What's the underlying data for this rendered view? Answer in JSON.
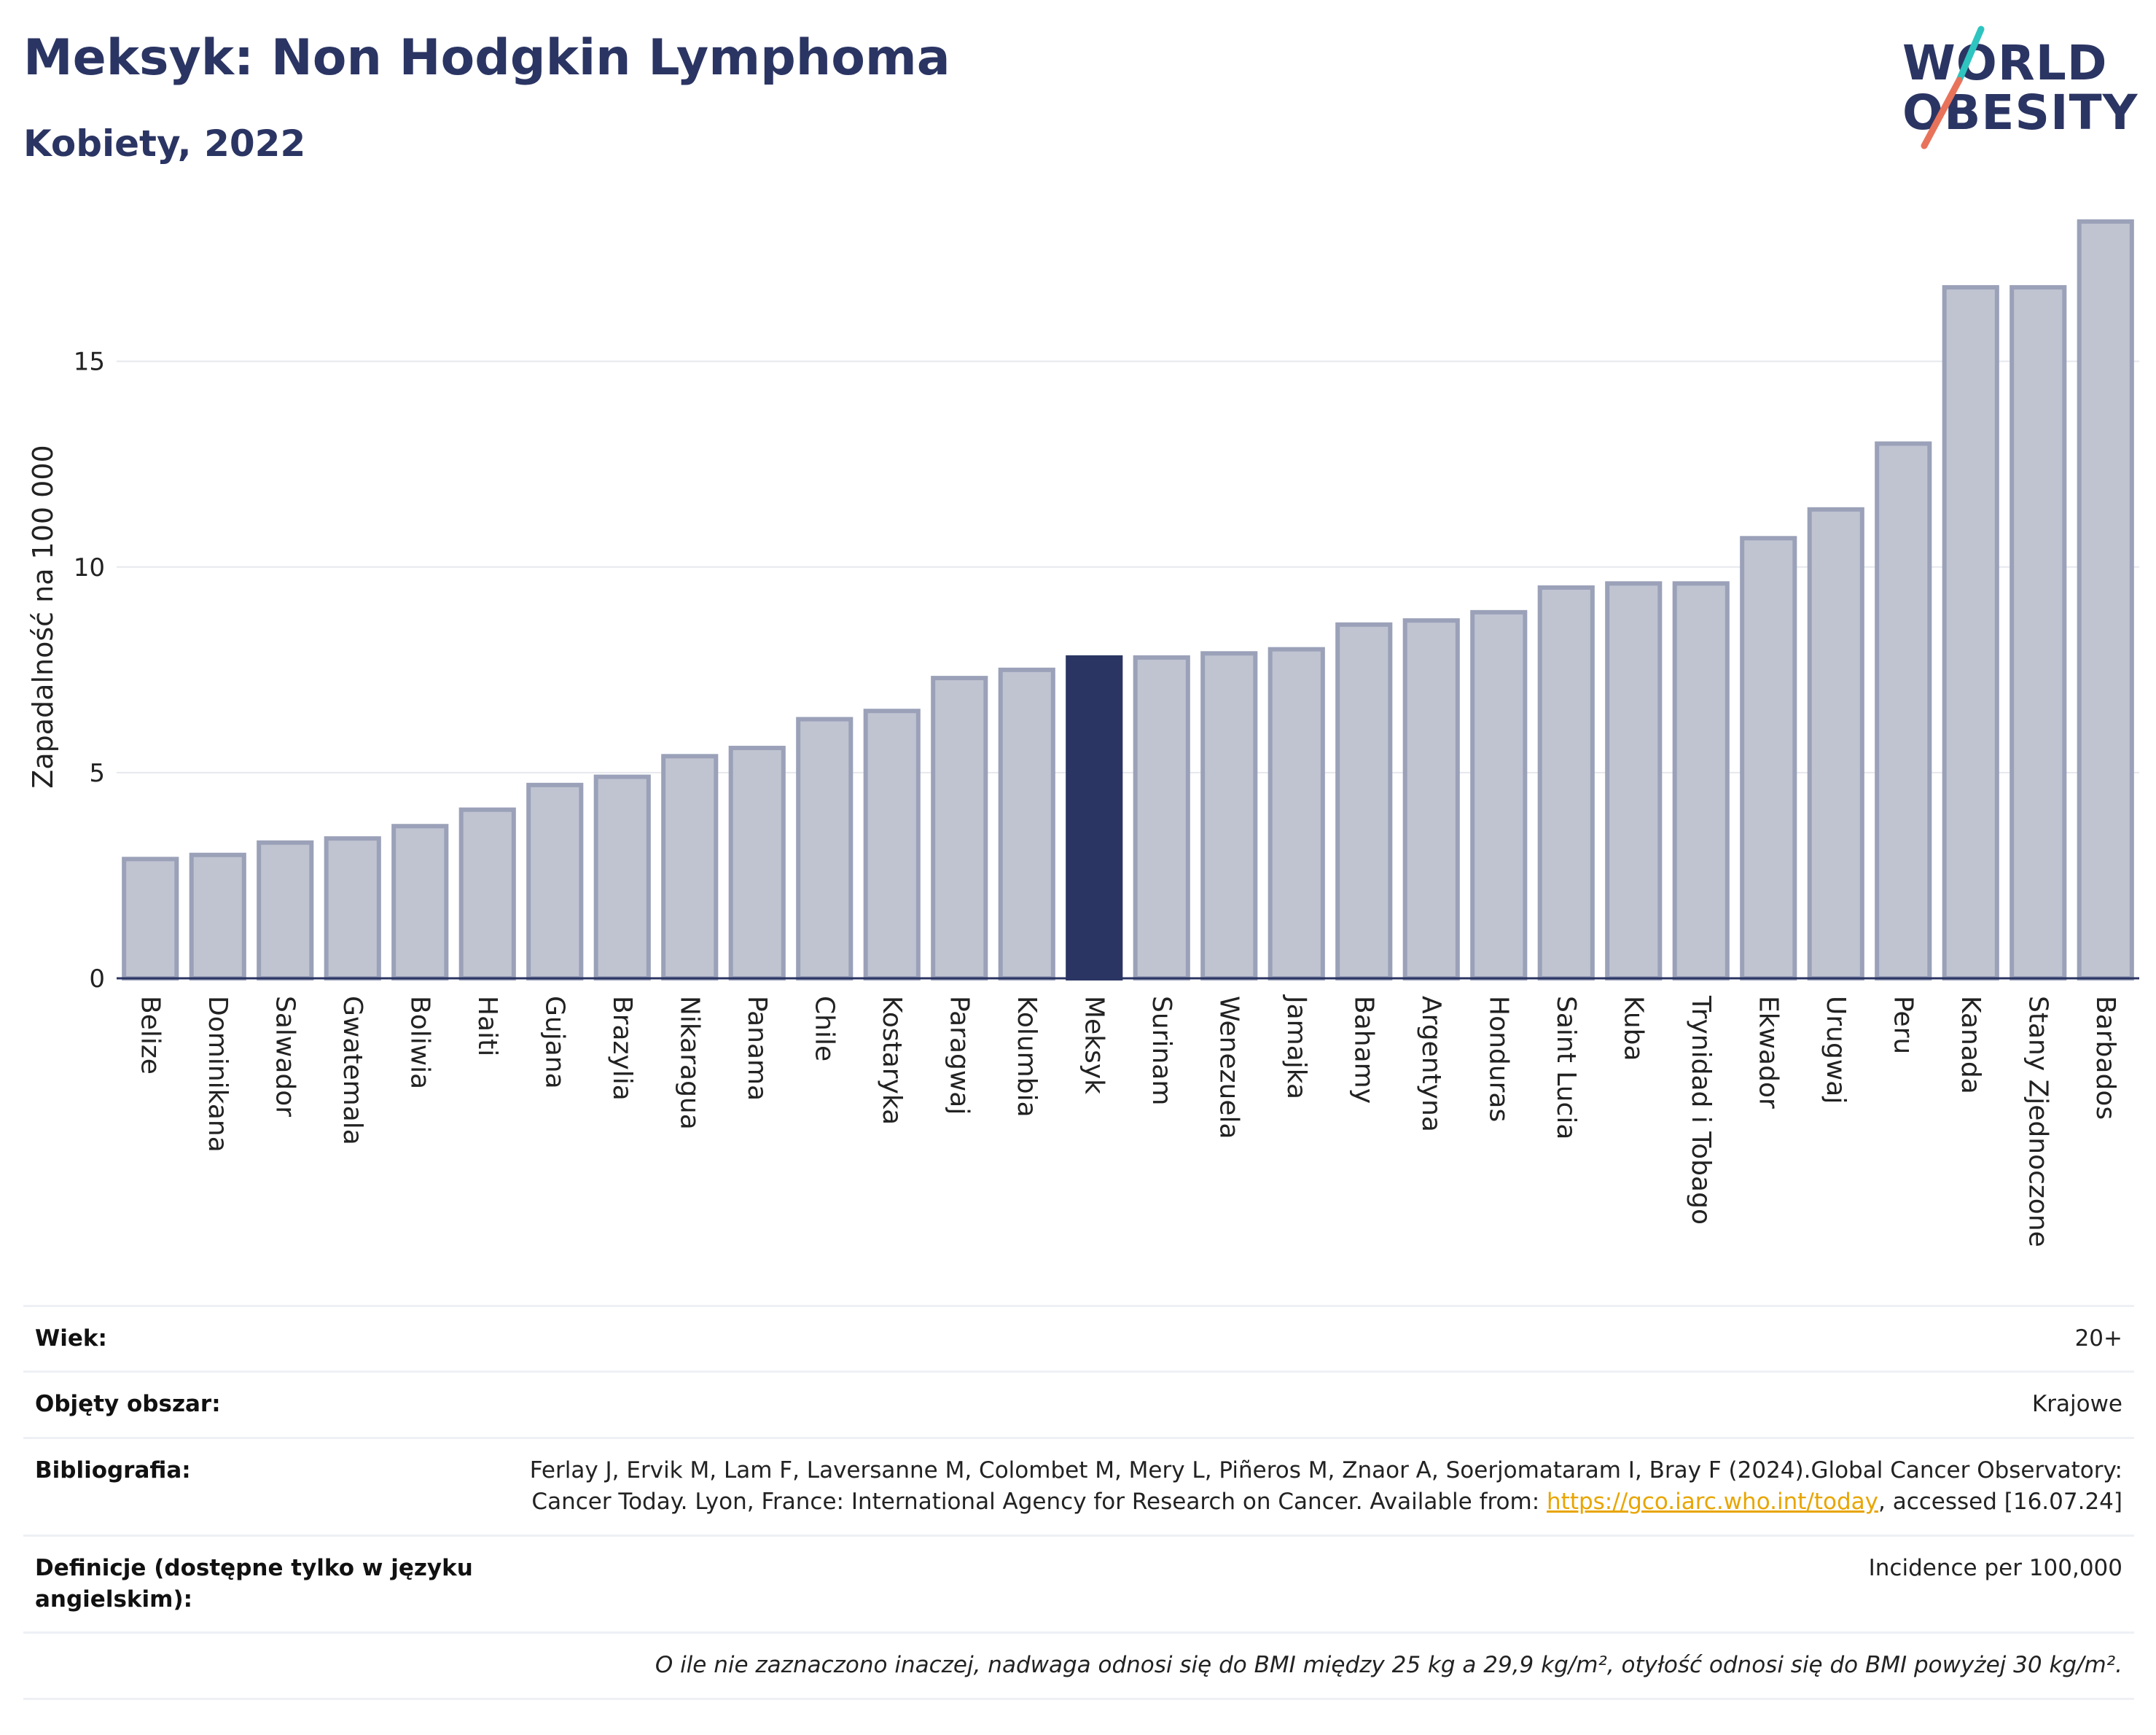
{
  "title": "Meksyk: Non Hodgkin Lymphoma",
  "subtitle": "Kobiety, 2022",
  "logo": {
    "line1": "WORLD",
    "line2": "OBESITY"
  },
  "colors": {
    "title": "#2b3563",
    "highlight": "#2b3563",
    "bar_fill": "#c0c4d1",
    "bar_stroke": "#9aa1b8",
    "link": "#e8a500",
    "logo_teal": "#2ec4c0",
    "logo_coral": "#e8735a"
  },
  "chart_data": {
    "type": "bar",
    "ylabel": "Zapadalność na 100 000",
    "xlabel": "",
    "ylim": [
      0,
      19
    ],
    "yticks": [
      0,
      5,
      10,
      15
    ],
    "grid": true,
    "highlight": "Meksyk",
    "categories": [
      "Belize",
      "Dominikana",
      "Salwador",
      "Gwatemala",
      "Boliwia",
      "Haiti",
      "Gujana",
      "Brazylia",
      "Nikaragua",
      "Panama",
      "Chile",
      "Kostaryka",
      "Paragwaj",
      "Kolumbia",
      "Meksyk",
      "Surinam",
      "Wenezuela",
      "Jamajka",
      "Bahamy",
      "Argentyna",
      "Honduras",
      "Saint Lucia",
      "Kuba",
      "Trynidad i Tobago",
      "Ekwador",
      "Urugwaj",
      "Peru",
      "Kanada",
      "Stany Zjednoczone",
      "Barbados"
    ],
    "values": [
      2.9,
      3.0,
      3.3,
      3.4,
      3.7,
      4.1,
      4.7,
      4.9,
      5.4,
      5.6,
      6.3,
      6.5,
      7.3,
      7.5,
      7.8,
      7.8,
      7.9,
      8.0,
      8.6,
      8.7,
      8.9,
      9.5,
      9.6,
      9.6,
      10.7,
      11.4,
      13.0,
      16.8,
      16.8,
      18.4
    ]
  },
  "info": {
    "age_label": "Wiek:",
    "age_value": "20+",
    "area_label": "Objęty obszar:",
    "area_value": "Krajowe",
    "biblio_label": "Bibliografia:",
    "biblio_text_1": "Ferlay J, Ervik M, Lam F, Laversanne M, Colombet M, Mery L, Piñeros M, Znaor A, Soerjomataram I, Bray F (2024).Global Cancer Observatory: Cancer Today. Lyon, France: International Agency for Research on Cancer. Available from: ",
    "biblio_link": "https://gco.iarc.who.int/today",
    "biblio_text_2": ", accessed [16.07.24]",
    "definitions_label": "Definicje (dostępne tylko w języku angielskim):",
    "definitions_value": "Incidence per 100,000",
    "note": "O ile nie zaznaczono inaczej, nadwaga odnosi się do BMI między 25 kg a 29,9 kg/m², otyłość odnosi się do BMI powyżej 30 kg/m²."
  }
}
